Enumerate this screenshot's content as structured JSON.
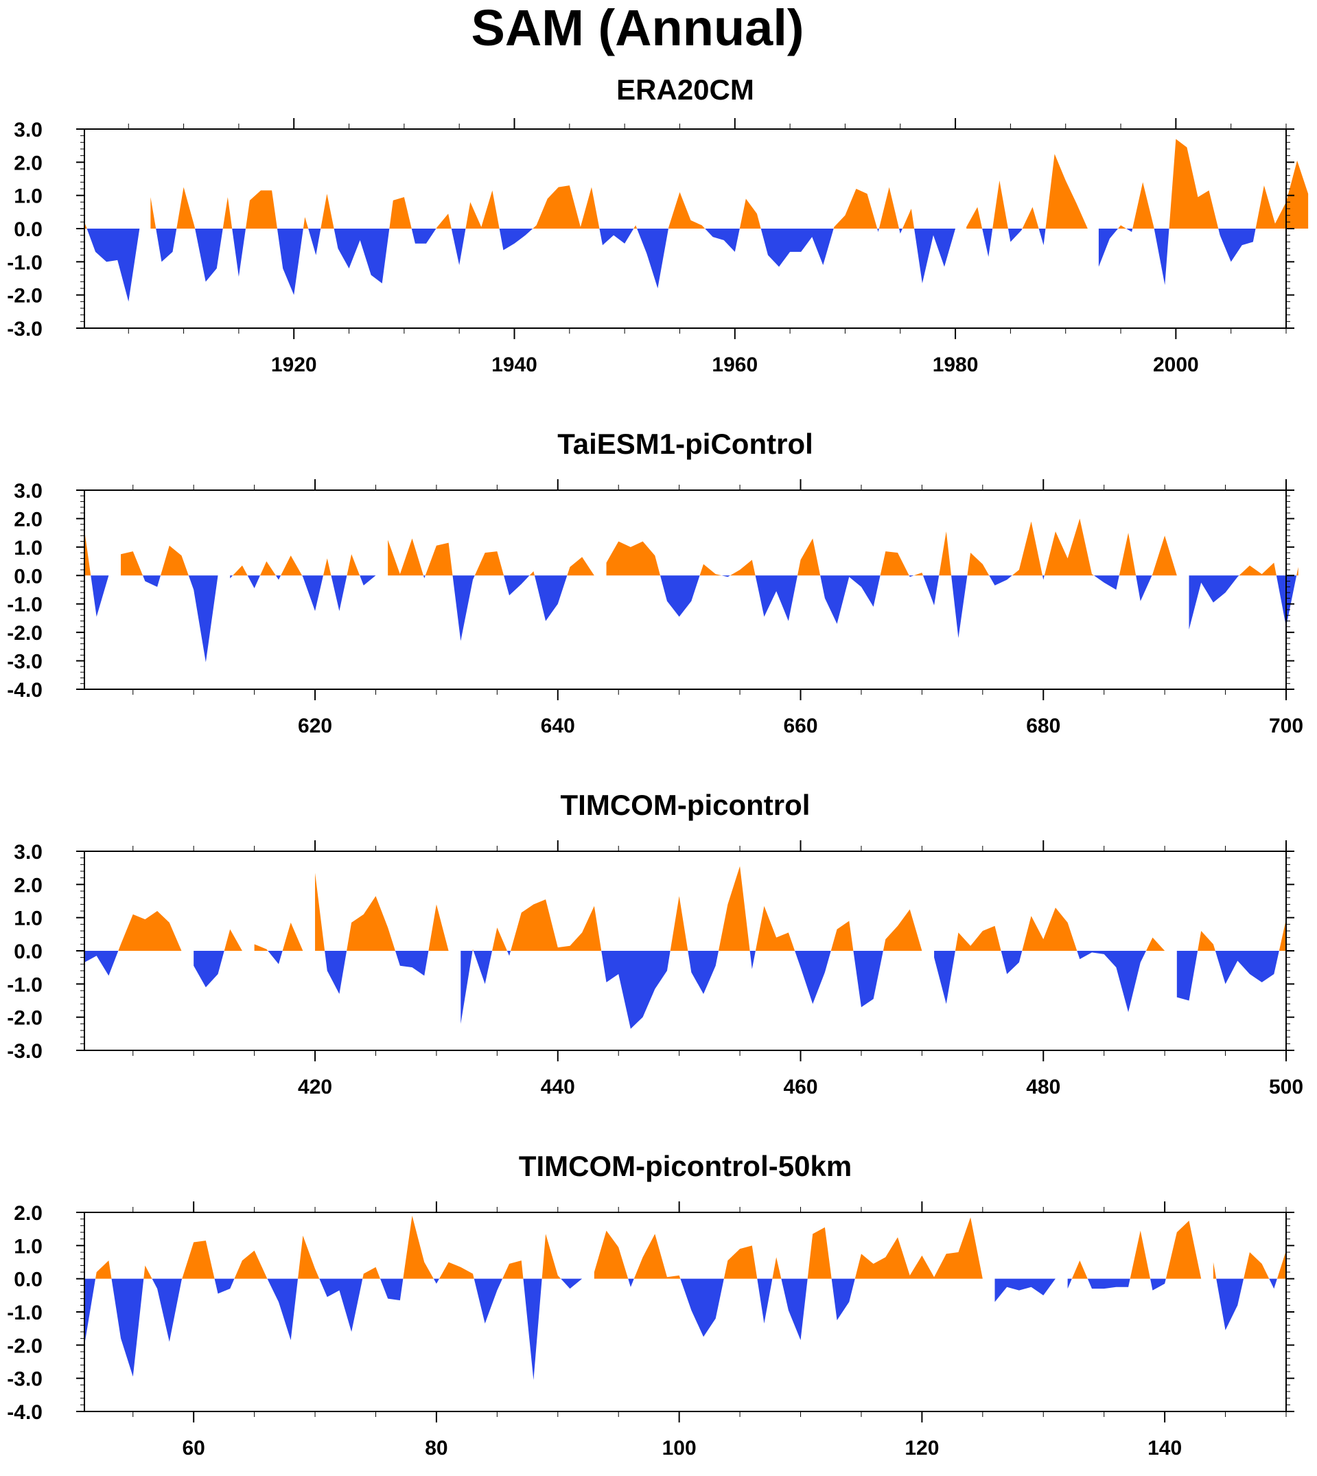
{
  "title": "SAM (Annual)",
  "colors": {
    "positive": "#ff8000",
    "negative": "#2a45ea",
    "frame": "#000000"
  },
  "chart_data": [
    {
      "type": "area",
      "title": "ERA20CM",
      "xlabel": "",
      "ylabel": "",
      "grid": false,
      "xlim": [
        1901,
        2010
      ],
      "ylim": [
        -3,
        3
      ],
      "yticks": [
        3.0,
        2.0,
        1.0,
        0.0,
        -1.0,
        -2.0,
        -3.0
      ],
      "ytick_labels": [
        "3.0",
        "2.0",
        "1.0",
        "0.0",
        "-1.0",
        "-2.0",
        "-3.0"
      ],
      "xticks": [
        1920,
        1940,
        1960,
        1980,
        2000
      ],
      "xtick_labels": [
        "1920",
        "1940",
        "1960",
        "1980",
        "2000"
      ],
      "x_start": 1901,
      "values": [
        0.2,
        -0.7,
        -1.0,
        -0.95,
        -2.2,
        0.0,
        0.95,
        -1.0,
        -0.7,
        1.25,
        0.05,
        -1.6,
        -1.2,
        0.95,
        -1.45,
        0.85,
        1.15,
        1.15,
        -1.2,
        -2.0,
        0.35,
        -0.8,
        1.05,
        -0.6,
        -1.2,
        -0.35,
        -1.4,
        -1.65,
        0.85,
        0.95,
        -0.45,
        -0.45,
        0.05,
        0.45,
        -1.1,
        0.8,
        0.05,
        1.15,
        -0.65,
        -0.45,
        -0.2,
        0.1,
        0.9,
        1.25,
        1.3,
        0.05,
        1.25,
        -0.5,
        -0.2,
        -0.45,
        0.1,
        -0.75,
        -1.8,
        0.05,
        1.1,
        0.25,
        0.1,
        -0.25,
        -0.35,
        -0.7,
        0.9,
        0.45,
        -0.8,
        -1.15,
        -0.7,
        -0.7,
        -0.25,
        -1.1,
        0.05,
        0.4,
        1.2,
        1.05,
        -0.1,
        1.25,
        -0.15,
        0.6,
        -1.65,
        -0.2,
        -1.15,
        0.0,
        0.05,
        0.65,
        -0.85,
        1.45,
        -0.4,
        -0.05,
        0.65,
        -0.5,
        2.25,
        1.45,
        0.75,
        0.0,
        -1.15,
        -0.3,
        0.1,
        -0.1,
        1.4,
        0.05,
        -1.7,
        2.7,
        2.45,
        0.95,
        1.15,
        -0.2,
        -1.0,
        -0.5,
        -0.4,
        1.3,
        0.15,
        0.8,
        2.05,
        1.05
      ]
    },
    {
      "type": "area",
      "title": "TaiESM1-piControl",
      "xlabel": "",
      "ylabel": "",
      "grid": false,
      "xlim": [
        601,
        700
      ],
      "ylim": [
        -4,
        3
      ],
      "yticks": [
        3.0,
        2.0,
        1.0,
        0.0,
        -1.0,
        -2.0,
        -3.0,
        -4.0
      ],
      "ytick_labels": [
        "3.0",
        "2.0",
        "1.0",
        "0.0",
        "-1.0",
        "-2.0",
        "-3.0",
        "-4.0"
      ],
      "xticks": [
        620,
        640,
        660,
        680,
        700
      ],
      "xtick_labels": [
        "620",
        "640",
        "660",
        "680",
        "700"
      ],
      "x_start": 601,
      "values": [
        1.6,
        -1.45,
        0.0,
        0.75,
        0.85,
        -0.2,
        -0.4,
        1.05,
        0.7,
        -0.5,
        -3.05,
        0.0,
        -0.1,
        0.35,
        -0.45,
        0.5,
        -0.15,
        0.7,
        -0.05,
        -1.25,
        0.6,
        -1.25,
        0.75,
        -0.35,
        0.0,
        1.25,
        0.05,
        1.3,
        -0.1,
        1.05,
        1.15,
        -2.3,
        -0.15,
        0.8,
        0.85,
        -0.7,
        -0.3,
        0.15,
        -1.6,
        -1.0,
        0.3,
        0.65,
        0.0,
        0.45,
        1.2,
        1.0,
        1.2,
        0.7,
        -0.9,
        -1.45,
        -0.9,
        0.4,
        0.05,
        -0.05,
        0.2,
        0.55,
        -1.45,
        -0.55,
        -1.6,
        0.55,
        1.3,
        -0.8,
        -1.7,
        -0.05,
        -0.4,
        -1.1,
        0.85,
        0.8,
        -0.05,
        0.1,
        -1.05,
        1.55,
        -2.2,
        0.8,
        0.4,
        -0.35,
        -0.15,
        0.2,
        1.9,
        -0.15,
        1.55,
        0.6,
        2.0,
        0.05,
        -0.25,
        -0.5,
        1.5,
        -0.9,
        0.05,
        1.4,
        0.0,
        -1.9,
        -0.25,
        -0.95,
        -0.6,
        -0.05,
        0.35,
        0.05,
        0.45,
        -1.8,
        0.3
      ]
    },
    {
      "type": "area",
      "title": "TIMCOM-picontrol",
      "xlabel": "",
      "ylabel": "",
      "grid": false,
      "xlim": [
        401,
        500
      ],
      "ylim": [
        -3,
        3
      ],
      "yticks": [
        3.0,
        2.0,
        1.0,
        0.0,
        -1.0,
        -2.0,
        -3.0
      ],
      "ytick_labels": [
        "3.0",
        "2.0",
        "1.0",
        "0.0",
        "-1.0",
        "-2.0",
        "-3.0"
      ],
      "xticks": [
        420,
        440,
        460,
        480,
        500
      ],
      "xtick_labels": [
        "420",
        "440",
        "460",
        "480",
        "500"
      ],
      "x_start": 401,
      "values": [
        -0.35,
        -0.15,
        -0.75,
        0.2,
        1.1,
        0.95,
        1.2,
        0.85,
        0.0,
        -0.45,
        -1.1,
        -0.7,
        0.65,
        0.0,
        0.2,
        0.05,
        -0.4,
        0.85,
        0.0,
        2.35,
        -0.6,
        -1.3,
        0.85,
        1.1,
        1.65,
        0.7,
        -0.45,
        -0.5,
        -0.75,
        1.4,
        0.0,
        -2.2,
        0.05,
        -1.0,
        0.7,
        -0.15,
        1.15,
        1.4,
        1.55,
        0.1,
        0.15,
        0.55,
        1.35,
        -0.95,
        -0.7,
        -2.35,
        -2.0,
        -1.15,
        -0.6,
        1.65,
        -0.65,
        -1.3,
        -0.45,
        1.4,
        2.55,
        -0.55,
        1.35,
        0.4,
        0.55,
        -0.5,
        -1.6,
        -0.65,
        0.65,
        0.9,
        -1.7,
        -1.45,
        0.35,
        0.75,
        1.25,
        0.0,
        -0.2,
        -1.6,
        0.55,
        0.15,
        0.6,
        0.75,
        -0.7,
        -0.35,
        1.05,
        0.35,
        1.3,
        0.85,
        -0.25,
        -0.05,
        -0.1,
        -0.5,
        -1.85,
        -0.35,
        0.4,
        0.0,
        -1.4,
        -1.5,
        0.6,
        0.2,
        -1.0,
        -0.3,
        -0.7,
        -0.95,
        -0.7,
        0.95
      ]
    },
    {
      "type": "area",
      "title": "TIMCOM-picontrol-50km",
      "xlabel": "",
      "ylabel": "",
      "grid": false,
      "xlim": [
        51,
        150
      ],
      "ylim": [
        -4,
        2
      ],
      "yticks": [
        2.0,
        1.0,
        0.0,
        -1.0,
        -2.0,
        -3.0,
        -4.0
      ],
      "ytick_labels": [
        "2.0",
        "1.0",
        "0.0",
        "-1.0",
        "-2.0",
        "-3.0",
        "-4.0"
      ],
      "xticks": [
        60,
        80,
        100,
        120,
        140
      ],
      "xtick_labels": [
        "60",
        "80",
        "100",
        "120",
        "140"
      ],
      "x_start": 51,
      "values": [
        -2.0,
        0.2,
        0.55,
        -1.8,
        -2.95,
        0.4,
        -0.3,
        -1.9,
        -0.05,
        1.1,
        1.15,
        -0.45,
        -0.3,
        0.55,
        0.85,
        0.05,
        -0.7,
        -1.85,
        1.3,
        0.3,
        -0.55,
        -0.35,
        -1.6,
        0.15,
        0.35,
        -0.6,
        -0.65,
        1.9,
        0.5,
        -0.15,
        0.5,
        0.35,
        0.15,
        -1.35,
        -0.35,
        0.45,
        0.55,
        -3.05,
        1.35,
        0.1,
        -0.3,
        0.0,
        0.2,
        1.45,
        0.95,
        -0.25,
        0.65,
        1.35,
        0.05,
        0.1,
        -0.95,
        -1.75,
        -1.2,
        0.55,
        0.9,
        1.0,
        -1.35,
        0.65,
        -0.95,
        -1.85,
        1.35,
        1.55,
        -1.25,
        -0.7,
        0.75,
        0.45,
        0.65,
        1.25,
        0.1,
        0.7,
        0.05,
        0.75,
        0.8,
        1.85,
        0.0,
        -0.7,
        -0.25,
        -0.35,
        -0.25,
        -0.5,
        0.0,
        -0.3,
        0.55,
        -0.3,
        -0.3,
        -0.25,
        -0.25,
        1.45,
        -0.35,
        -0.15,
        1.4,
        1.75,
        0.0,
        0.5,
        -1.55,
        -0.8,
        0.8,
        0.45,
        -0.3,
        0.85
      ]
    }
  ]
}
